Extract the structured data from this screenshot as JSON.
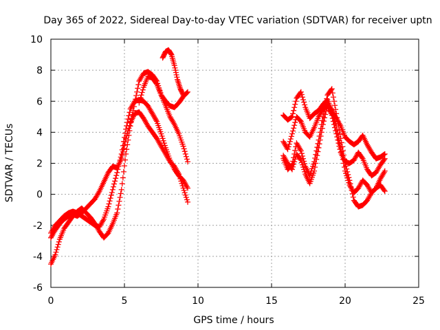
{
  "chart_data": {
    "type": "scatter",
    "title": "Day 365 of 2022, Sidereal Day-to-day VTEC variation (SDTVAR) for receiver uptn",
    "xlabel": "GPS time / hours",
    "ylabel": "SDTVAR / TECUs",
    "xlim": [
      0,
      25
    ],
    "ylim": [
      -6,
      10
    ],
    "xticks": [
      "0",
      "5",
      "10",
      "15",
      "20",
      "25"
    ],
    "yticks": [
      "-6",
      "-4",
      "-2",
      "0",
      "2",
      "4",
      "6",
      "8",
      "10"
    ],
    "grid": true,
    "marker": "+",
    "color": "#ff0000",
    "series": [
      {
        "x": [
          0.0,
          0.3,
          0.6,
          0.9,
          1.2,
          1.5,
          1.8,
          2.1,
          2.4,
          2.7,
          3.0,
          3.3,
          3.6,
          3.9,
          4.2,
          4.5,
          4.8,
          5.1,
          5.4,
          5.7,
          6.0,
          6.3,
          6.6,
          6.9,
          7.2,
          7.5,
          7.8,
          8.1,
          8.4,
          8.7,
          9.0,
          9.3
        ],
        "y": [
          -2.5,
          -2.0,
          -1.7,
          -1.4,
          -1.2,
          -1.1,
          -1.2,
          -1.4,
          -1.6,
          -1.8,
          -2.0,
          -2.1,
          -1.6,
          -0.8,
          0.3,
          1.4,
          2.6,
          4.2,
          5.5,
          6.0,
          6.1,
          6.0,
          5.7,
          5.2,
          4.7,
          3.9,
          3.0,
          2.2,
          1.6,
          1.2,
          0.9,
          0.4
        ]
      },
      {
        "x": [
          0.0,
          0.3,
          0.6,
          0.9,
          1.2,
          1.5,
          1.8,
          2.1,
          2.4,
          2.7,
          3.0,
          3.3,
          3.6,
          3.9,
          4.2,
          4.5,
          4.8,
          5.1,
          5.4,
          5.7,
          6.0,
          6.3,
          6.6,
          6.9,
          7.2,
          7.5,
          7.8,
          8.1,
          8.4,
          8.7,
          9.0,
          9.3
        ],
        "y": [
          -2.8,
          -2.3,
          -1.9,
          -1.6,
          -1.4,
          -1.3,
          -1.4,
          -1.2,
          -0.9,
          -0.6,
          -0.3,
          0.2,
          0.8,
          1.4,
          1.8,
          1.7,
          2.3,
          3.6,
          4.6,
          5.2,
          5.3,
          4.9,
          4.4,
          4.0,
          3.6,
          3.1,
          2.6,
          2.1,
          1.8,
          1.3,
          0.4,
          -0.5
        ]
      },
      {
        "x": [
          0.0,
          0.3,
          0.6,
          0.9,
          1.2,
          1.5,
          1.8,
          2.1,
          2.4,
          2.7,
          3.0,
          3.3,
          3.6,
          3.9,
          4.2,
          4.5,
          4.8,
          5.1,
          5.4,
          5.7,
          6.0,
          6.3,
          6.6,
          6.9,
          7.2,
          7.5,
          7.8,
          8.1,
          8.4,
          8.7,
          9.0,
          9.3
        ],
        "y": [
          -4.5,
          -3.9,
          -2.9,
          -2.2,
          -1.8,
          -1.4,
          -1.1,
          -0.9,
          -1.2,
          -1.5,
          -1.9,
          -2.4,
          -2.8,
          -2.5,
          -1.9,
          -1.2,
          0.3,
          2.6,
          4.4,
          5.9,
          7.3,
          7.8,
          7.9,
          7.7,
          7.3,
          6.4,
          5.7,
          5.0,
          4.5,
          3.9,
          3.1,
          2.1
        ]
      },
      {
        "x": [
          6.0,
          6.3,
          6.6,
          6.9,
          7.2,
          7.5,
          7.8,
          8.1,
          8.4,
          8.7,
          9.0,
          9.3
        ],
        "y": [
          5.9,
          6.9,
          7.6,
          7.5,
          7.1,
          6.4,
          6.0,
          5.7,
          5.6,
          5.9,
          6.3,
          6.6
        ]
      },
      {
        "x": [
          7.6,
          7.8,
          8.0,
          8.2,
          8.4,
          8.6,
          8.8,
          9.0
        ],
        "y": [
          8.8,
          9.2,
          9.3,
          9.0,
          8.3,
          7.4,
          6.8,
          6.4
        ]
      },
      {
        "x": [
          15.8,
          16.1,
          16.4,
          16.7,
          17.0,
          17.3,
          17.6,
          17.9,
          18.2,
          18.5,
          18.8,
          19.1,
          19.4,
          19.7,
          20.0,
          20.3,
          20.6,
          20.9,
          21.2,
          21.5,
          21.8,
          22.1,
          22.4,
          22.7
        ],
        "y": [
          5.1,
          4.8,
          5.0,
          6.2,
          6.6,
          5.6,
          4.9,
          5.2,
          5.4,
          5.8,
          6.1,
          5.4,
          4.9,
          4.4,
          3.7,
          3.4,
          3.2,
          3.4,
          3.8,
          3.2,
          2.7,
          2.3,
          2.4,
          2.6
        ]
      },
      {
        "x": [
          15.8,
          16.1,
          16.4,
          16.7,
          17.0,
          17.3,
          17.6,
          17.9,
          18.2,
          18.5,
          18.8,
          19.1,
          19.4,
          19.7,
          20.0,
          20.3,
          20.6,
          20.9,
          21.2,
          21.5,
          21.8,
          22.1,
          22.4,
          22.7
        ],
        "y": [
          3.4,
          2.9,
          3.9,
          5.0,
          4.7,
          4.0,
          3.7,
          4.3,
          5.0,
          5.5,
          5.7,
          5.1,
          3.9,
          2.7,
          2.1,
          2.0,
          2.2,
          2.7,
          2.3,
          1.6,
          1.2,
          1.4,
          1.9,
          2.3
        ]
      },
      {
        "x": [
          15.8,
          16.1,
          16.4,
          16.7,
          17.0,
          17.3,
          17.6,
          17.9,
          18.2,
          18.5,
          18.8,
          19.1,
          19.4,
          19.7,
          20.0,
          20.3,
          20.6,
          20.9,
          21.2,
          21.5,
          21.8,
          22.1,
          22.4,
          22.7
        ],
        "y": [
          2.5,
          2.0,
          1.6,
          2.6,
          2.2,
          1.3,
          0.7,
          1.5,
          3.0,
          4.5,
          5.8,
          5.4,
          4.4,
          3.0,
          1.5,
          0.6,
          0.1,
          0.4,
          0.9,
          0.6,
          0.1,
          0.4,
          1.0,
          1.5
        ]
      },
      {
        "x": [
          15.8,
          16.1,
          16.4,
          16.7,
          17.0,
          17.3,
          17.6,
          17.9,
          18.2,
          18.5,
          18.8,
          19.1,
          19.4,
          19.7,
          20.0,
          20.3,
          20.6,
          20.9,
          21.2,
          21.5,
          21.8,
          22.1,
          22.4,
          22.7
        ],
        "y": [
          2.3,
          1.6,
          1.9,
          3.3,
          2.8,
          1.8,
          1.2,
          2.1,
          3.5,
          5.0,
          6.4,
          6.8,
          5.2,
          3.6,
          2.0,
          0.9,
          -0.4,
          -0.8,
          -0.7,
          -0.4,
          0.1,
          0.4,
          0.6,
          0.2
        ]
      }
    ]
  }
}
